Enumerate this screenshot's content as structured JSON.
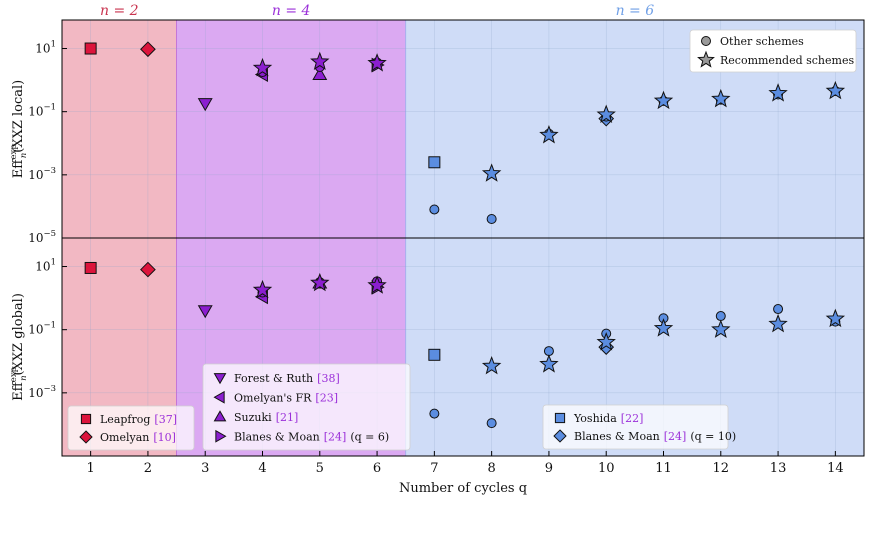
{
  "chart_data": [
    {
      "type": "scatter",
      "panel": "top",
      "ylabel_main": "Eff",
      "ylabel_sup": "exp",
      "ylabel_sub": "n",
      "ylabel_rest": "(XXZ local)",
      "yscale": "log",
      "ylim": [
        1e-05,
        80
      ],
      "xlim": [
        0.5,
        14.5
      ],
      "grid": true,
      "y_ticks": [
        {
          "v": 10,
          "b": "10",
          "e": "1"
        },
        {
          "v": 0.1,
          "b": "10",
          "e": "−1"
        },
        {
          "v": 0.001,
          "b": "10",
          "e": "−3"
        },
        {
          "v": 1e-05,
          "b": "10",
          "e": "−5"
        }
      ],
      "legend": {
        "placement": "top-right",
        "entries": [
          "Other schemes",
          "Recommended schemes"
        ]
      },
      "series": [
        {
          "name": "Leapfrog",
          "color": "#dc143c",
          "marker": "square",
          "recommended": [
            {
              "x": 1,
              "y": 10
            }
          ],
          "other": []
        },
        {
          "name": "Omelyan",
          "color": "#dc143c",
          "marker": "diamond",
          "recommended": [
            {
              "x": 2,
              "y": 9.5
            }
          ],
          "other": []
        },
        {
          "name": "Forest & Ruth",
          "color": "#8b1ecf",
          "marker": "triangle-down",
          "recommended": [
            {
              "x": 3,
              "y": 0.18
            }
          ],
          "other": []
        },
        {
          "name": "Omelyan's FR",
          "color": "#8b1ecf",
          "marker": "triangle-left",
          "recommended": [
            {
              "x": 4,
              "y": 1.5
            }
          ],
          "other": []
        },
        {
          "name": "Suzuki",
          "color": "#8b1ecf",
          "marker": "triangle-up",
          "recommended": [
            {
              "x": 5,
              "y": 1.5
            }
          ],
          "other": []
        },
        {
          "name": "Blanes & Moan [24] (q = 6)",
          "color": "#8b1ecf",
          "marker": "triangle-right",
          "recommended": [
            {
              "x": 6,
              "y": 3.0
            }
          ],
          "other": []
        },
        {
          "name": "Yoshida",
          "color": "#5b8de0",
          "marker": "square",
          "recommended": [
            {
              "x": 7,
              "y": 0.0025
            }
          ],
          "other": []
        },
        {
          "name": "Blanes & Moan [24] (q = 10)",
          "color": "#5b8de0",
          "marker": "diamond",
          "recommended": [
            {
              "x": 10,
              "y": 0.06
            }
          ],
          "other": []
        },
        {
          "name": "",
          "color": "#8b1ecf",
          "marker": "other",
          "recommended": [
            {
              "x": 4,
              "y": 2.4
            },
            {
              "x": 5,
              "y": 3.8
            },
            {
              "x": 6,
              "y": 3.4
            }
          ],
          "other": [
            {
              "x": 4,
              "y": 1.8
            },
            {
              "x": 5,
              "y": 2.6
            },
            {
              "x": 6,
              "y": 3.6
            }
          ]
        },
        {
          "name": "",
          "color": "#5b8de0",
          "marker": "other",
          "recommended": [
            {
              "x": 8,
              "y": 0.0011
            },
            {
              "x": 9,
              "y": 0.018
            },
            {
              "x": 10,
              "y": 0.08
            },
            {
              "x": 11,
              "y": 0.22
            },
            {
              "x": 12,
              "y": 0.25
            },
            {
              "x": 13,
              "y": 0.38
            },
            {
              "x": 14,
              "y": 0.45
            }
          ],
          "other": [
            {
              "x": 7,
              "y": 8e-05
            },
            {
              "x": 8,
              "y": 4e-05
            },
            {
              "x": 9,
              "y": 0.02
            },
            {
              "x": 10,
              "y": 0.07
            },
            {
              "x": 11,
              "y": 0.22
            },
            {
              "x": 12,
              "y": 0.24
            },
            {
              "x": 13,
              "y": 0.35
            },
            {
              "x": 14,
              "y": 0.45
            }
          ]
        }
      ]
    },
    {
      "type": "scatter",
      "panel": "bottom",
      "ylabel_main": "Eff",
      "ylabel_sup": "exp",
      "ylabel_sub": "n",
      "ylabel_rest": "(XXZ global)",
      "xlabel": "Number of cycles q",
      "yscale": "log",
      "ylim": [
        1e-05,
        80
      ],
      "xlim": [
        0.5,
        14.5
      ],
      "grid": true,
      "x_ticks": [
        "1",
        "2",
        "3",
        "4",
        "5",
        "6",
        "7",
        "8",
        "9",
        "10",
        "11",
        "12",
        "13",
        "14"
      ],
      "y_ticks": [
        {
          "v": 10,
          "b": "10",
          "e": "1"
        },
        {
          "v": 0.1,
          "b": "10",
          "e": "−1"
        },
        {
          "v": 0.001,
          "b": "10",
          "e": "−3"
        }
      ],
      "series": [
        {
          "name": "Leapfrog",
          "color": "#dc143c",
          "marker": "square",
          "recommended": [
            {
              "x": 1,
              "y": 9
            }
          ],
          "other": []
        },
        {
          "name": "Omelyan",
          "color": "#dc143c",
          "marker": "diamond",
          "recommended": [
            {
              "x": 2,
              "y": 8
            }
          ],
          "other": []
        },
        {
          "name": "Forest & Ruth",
          "color": "#8b1ecf",
          "marker": "triangle-down",
          "recommended": [
            {
              "x": 3,
              "y": 0.4
            }
          ],
          "other": []
        },
        {
          "name": "Omelyan's FR",
          "color": "#8b1ecf",
          "marker": "triangle-left",
          "recommended": [
            {
              "x": 4,
              "y": 1.1
            }
          ],
          "other": []
        },
        {
          "name": "Suzuki",
          "color": "#8b1ecf",
          "marker": "triangle-up",
          "recommended": [
            {
              "x": 5,
              "y": 3.0
            }
          ],
          "other": []
        },
        {
          "name": "Blanes & Moan [24] (q = 6)",
          "color": "#8b1ecf",
          "marker": "triangle-right",
          "recommended": [
            {
              "x": 6,
              "y": 2.2
            }
          ],
          "other": []
        },
        {
          "name": "Yoshida",
          "color": "#5b8de0",
          "marker": "square",
          "recommended": [
            {
              "x": 7,
              "y": 0.016
            }
          ],
          "other": []
        },
        {
          "name": "Blanes & Moan [24] (q = 10)",
          "color": "#5b8de0",
          "marker": "diamond",
          "recommended": [
            {
              "x": 10,
              "y": 0.028
            }
          ],
          "other": []
        },
        {
          "name": "",
          "color": "#8b1ecf",
          "marker": "other",
          "recommended": [
            {
              "x": 4,
              "y": 1.8
            },
            {
              "x": 5,
              "y": 3.0
            },
            {
              "x": 6,
              "y": 2.5
            }
          ],
          "other": [
            {
              "x": 4,
              "y": 1.5
            },
            {
              "x": 5,
              "y": 3.2
            },
            {
              "x": 6,
              "y": 3.4
            }
          ]
        },
        {
          "name": "",
          "color": "#5b8de0",
          "marker": "other",
          "recommended": [
            {
              "x": 8,
              "y": 0.007
            },
            {
              "x": 9,
              "y": 0.008
            },
            {
              "x": 10,
              "y": 0.04
            },
            {
              "x": 11,
              "y": 0.11
            },
            {
              "x": 12,
              "y": 0.1
            },
            {
              "x": 13,
              "y": 0.15
            },
            {
              "x": 14,
              "y": 0.22
            }
          ],
          "other": [
            {
              "x": 7,
              "y": 0.00022
            },
            {
              "x": 8,
              "y": 0.00011
            },
            {
              "x": 9,
              "y": 0.021
            },
            {
              "x": 10,
              "y": 0.075
            },
            {
              "x": 11,
              "y": 0.23
            },
            {
              "x": 12,
              "y": 0.27
            },
            {
              "x": 13,
              "y": 0.45
            },
            {
              "x": 14,
              "y": 0.18
            }
          ]
        }
      ]
    }
  ],
  "regions": [
    {
      "label": "n = 2",
      "color": "#c9344f",
      "fill": "#f2b8c3",
      "x_from": 0.5,
      "x_to": 2.5
    },
    {
      "label": "n = 4",
      "color": "#9b30d9",
      "fill": "#dba9f2",
      "x_from": 2.5,
      "x_to": 6.5
    },
    {
      "label": "n = 6",
      "color": "#6f9fe6",
      "fill": "#cfdcf7",
      "x_from": 6.5,
      "x_to": 14.5
    }
  ],
  "legend_boxes": [
    {
      "items": [
        {
          "name": "Leapfrog",
          "ref": "[37]",
          "marker": "square",
          "color": "#dc143c"
        },
        {
          "name": "Omelyan",
          "ref": "[10]",
          "marker": "diamond",
          "color": "#dc143c"
        }
      ]
    },
    {
      "items": [
        {
          "name": "Forest & Ruth",
          "ref": "[38]",
          "marker": "triangle-down",
          "color": "#8b1ecf"
        },
        {
          "name": "Omelyan's FR",
          "ref": "[23]",
          "marker": "triangle-left",
          "color": "#8b1ecf"
        },
        {
          "name": "Suzuki",
          "ref": "[21]",
          "marker": "triangle-up",
          "color": "#8b1ecf"
        },
        {
          "name": "Blanes & Moan",
          "ref": "[24]",
          "tail": "(q = 6)",
          "marker": "triangle-right",
          "color": "#8b1ecf"
        }
      ]
    },
    {
      "items": [
        {
          "name": "Yoshida",
          "ref": "[22]",
          "marker": "square",
          "color": "#5b8de0"
        },
        {
          "name": "Blanes & Moan",
          "ref": "[24]",
          "tail": "(q = 10)",
          "marker": "diamond",
          "color": "#5b8de0"
        }
      ]
    }
  ],
  "ref_color": "#9b30d9"
}
